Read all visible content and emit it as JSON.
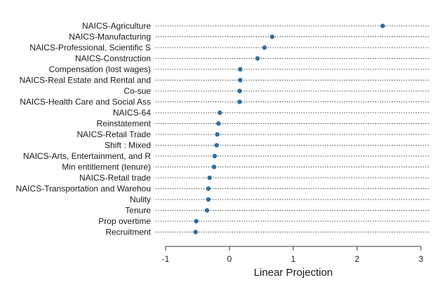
{
  "chart_data": {
    "type": "scatter",
    "style": "dot-plot",
    "xlabel": "Linear Projection",
    "xlim": [
      -1,
      3
    ],
    "xticks": [
      "-1",
      "0",
      "1",
      "2",
      "3"
    ],
    "grid": "dotted horizontal lines per category",
    "point_color": "#2e6f9e",
    "categories": [
      "NAICS-Agriculture",
      "NAICS-Manufacturing",
      "NAICS-Professional, Scientific S",
      "NAICS-Construction",
      "Compensation (lost wages)",
      "NAICS-Real Estate and Rental and",
      "Co-sue",
      "NAICS-Health Care and Social Ass",
      "NAICS-64",
      "Reinstatement",
      "NAICS-Retail Trade",
      "Shift : Mixed",
      "NAICS-Arts, Entertainment, and R",
      "Min entitlement (tenure)",
      "NAICS-Retail trade",
      "NAICS-Transportation and Warehou",
      "Nulity",
      "Tenure",
      "Prop overtime",
      "Recruitment"
    ],
    "values": [
      2.4,
      0.67,
      0.55,
      0.44,
      0.17,
      0.17,
      0.16,
      0.16,
      -0.15,
      -0.17,
      -0.19,
      -0.2,
      -0.23,
      -0.24,
      -0.31,
      -0.33,
      -0.33,
      -0.35,
      -0.52,
      -0.53
    ]
  }
}
